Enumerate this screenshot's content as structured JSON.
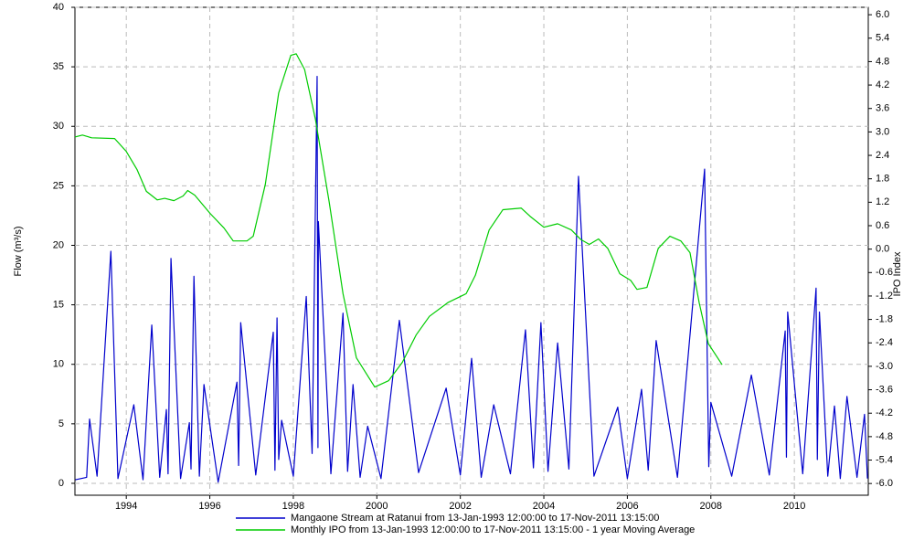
{
  "chart_data": {
    "type": "line",
    "ylabel": "Flow (m³/s)",
    "y2label": "IPO Index",
    "xlim": [
      1992.77,
      2011.77
    ],
    "xticks": [
      1994,
      1996,
      1998,
      2000,
      2002,
      2004,
      2006,
      2008,
      2010
    ],
    "ylim": [
      -1,
      40
    ],
    "yticks": [
      0,
      5,
      10,
      15,
      20,
      25,
      30,
      35,
      40
    ],
    "y2lim": [
      -6.3,
      6.19
    ],
    "y2ticks": [
      {
        "value": 6,
        "label": "6.0"
      },
      5.4,
      4.8,
      4.2,
      3.6,
      {
        "value": 3,
        "label": "3.0"
      },
      2.4,
      1.8,
      1.2,
      0.6,
      {
        "value": 0,
        "label": "0.0"
      },
      -0.6,
      -1.2,
      -1.8,
      -2.4,
      {
        "value": -3,
        "label": "-3.0"
      },
      -3.6,
      -4.2,
      -4.8,
      -5.4,
      {
        "value": -6,
        "label": "-6.0"
      }
    ],
    "grid": true,
    "series": [
      {
        "name": "Mangaone Stream at Ratanui from 13-Jan-1993 12:00:00 to 17-Nov-2011 13:15:00",
        "color": "#0000cc",
        "x": [
          1992.78,
          1993.05,
          1993.12,
          1993.3,
          1993.63,
          1993.8,
          1994.18,
          1994.4,
          1994.61,
          1994.8,
          1994.96,
          1995.0,
          1995.07,
          1995.3,
          1995.51,
          1995.55,
          1995.62,
          1995.75,
          1995.86,
          1996.2,
          1996.65,
          1996.69,
          1996.74,
          1997.1,
          1997.52,
          1997.56,
          1997.61,
          1997.65,
          1997.72,
          1998.0,
          1998.31,
          1998.45,
          1998.57,
          1998.59,
          1998.6,
          1998.9,
          1999.19,
          1999.3,
          1999.43,
          1999.6,
          1999.78,
          2000.1,
          2000.54,
          2001.0,
          2001.66,
          2002.0,
          2002.27,
          2002.5,
          2002.8,
          2003.2,
          2003.56,
          2003.75,
          2003.93,
          2004.1,
          2004.33,
          2004.6,
          2004.83,
          2005.2,
          2005.77,
          2006.0,
          2006.34,
          2006.5,
          2006.69,
          2007.2,
          2007.85,
          2007.95,
          2008.0,
          2008.5,
          2008.97,
          2009.4,
          2009.78,
          2009.81,
          2009.84,
          2010.2,
          2010.52,
          2010.55,
          2010.6,
          2010.8,
          2010.96,
          2011.1,
          2011.26,
          2011.5,
          2011.68,
          2011.75
        ],
        "values": [
          0.3,
          0.5,
          5.4,
          0.6,
          19.5,
          0.4,
          6.6,
          0.3,
          13.3,
          0.5,
          6.2,
          0.8,
          18.9,
          0.4,
          5.1,
          1.2,
          17.4,
          0.6,
          8.3,
          0.1,
          8.5,
          1.5,
          13.5,
          0.7,
          12.7,
          1.1,
          13.9,
          2.0,
          5.3,
          0.6,
          15.7,
          2.5,
          34.2,
          3.0,
          22.0,
          0.8,
          14.3,
          1.0,
          8.3,
          0.5,
          4.8,
          0.4,
          13.7,
          0.9,
          8.0,
          0.7,
          10.5,
          0.5,
          6.6,
          0.8,
          12.9,
          1.3,
          13.5,
          1.0,
          11.8,
          1.2,
          25.8,
          0.6,
          6.4,
          0.4,
          7.9,
          1.1,
          12.0,
          0.5,
          26.4,
          1.4,
          6.8,
          0.6,
          9.1,
          0.7,
          12.8,
          2.2,
          14.4,
          0.8,
          16.4,
          2.0,
          14.4,
          0.6,
          6.5,
          0.4,
          7.3,
          0.5,
          5.8,
          0.4
        ]
      },
      {
        "name": "Monthly IPO from 13-Jan-1993 12:00:00 to 17-Nov-2011 13:15:00 - 1 year Moving Average",
        "color": "#00cc00",
        "axis": "y2",
        "x": [
          1992.77,
          1992.95,
          1993.17,
          1993.72,
          1994.0,
          1994.26,
          1994.48,
          1994.74,
          1994.92,
          1995.14,
          1995.36,
          1995.47,
          1995.64,
          1996.01,
          1996.34,
          1996.56,
          1996.89,
          1997.04,
          1997.33,
          1997.65,
          1997.94,
          1998.07,
          1998.27,
          1998.53,
          1998.86,
          1999.19,
          1999.51,
          1999.95,
          2000.28,
          2000.61,
          2000.94,
          2001.26,
          2001.7,
          2002.14,
          2002.36,
          2002.69,
          2003.02,
          2003.46,
          2003.67,
          2004.0,
          2004.33,
          2004.66,
          2004.88,
          2005.09,
          2005.31,
          2005.53,
          2005.82,
          2006.08,
          2006.23,
          2006.47,
          2006.74,
          2007.02,
          2007.28,
          2007.5,
          2007.72,
          2007.94,
          2008.27
        ],
        "values": [
          2.87,
          2.92,
          2.85,
          2.83,
          2.5,
          2.03,
          1.48,
          1.26,
          1.3,
          1.24,
          1.36,
          1.5,
          1.38,
          0.91,
          0.54,
          0.21,
          0.21,
          0.33,
          1.66,
          4.0,
          4.96,
          5.0,
          4.6,
          3.32,
          1.2,
          -1.14,
          -2.78,
          -3.53,
          -3.37,
          -2.9,
          -2.2,
          -1.72,
          -1.37,
          -1.14,
          -0.67,
          0.49,
          1.01,
          1.05,
          0.84,
          0.56,
          0.65,
          0.49,
          0.25,
          0.12,
          0.26,
          0.02,
          -0.63,
          -0.8,
          -1.03,
          -0.98,
          0.02,
          0.33,
          0.21,
          -0.09,
          -1.37,
          -2.42,
          -2.96
        ]
      }
    ]
  }
}
